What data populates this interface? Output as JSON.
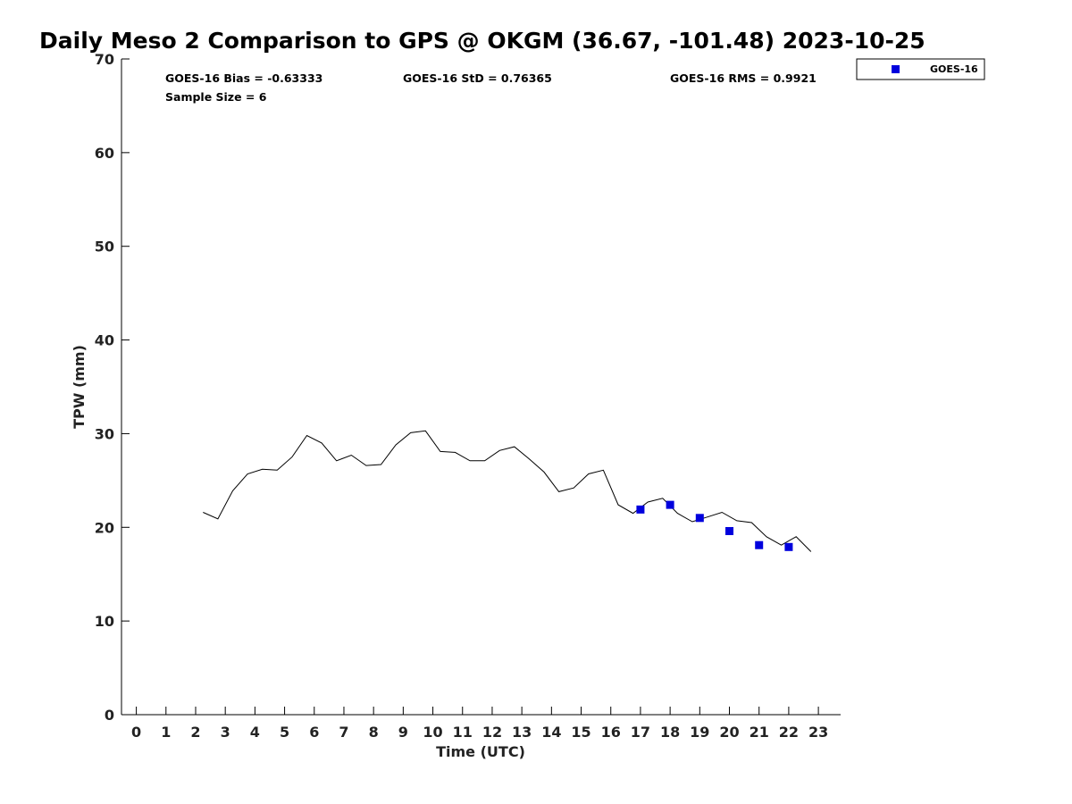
{
  "chart_data": {
    "type": "line",
    "title": "Daily Meso 2 Comparison to GPS @ OKGM (36.67, -101.48) 2023-10-25",
    "xlabel": "Time (UTC)",
    "ylabel": "TPW (mm)",
    "xlim": [
      -0.5,
      23.75
    ],
    "ylim": [
      0,
      70
    ],
    "x_ticks": [
      0,
      1,
      2,
      3,
      4,
      5,
      6,
      7,
      8,
      9,
      10,
      11,
      12,
      13,
      14,
      15,
      16,
      17,
      18,
      19,
      20,
      21,
      22,
      23
    ],
    "y_ticks": [
      0,
      10,
      20,
      30,
      40,
      50,
      60,
      70
    ],
    "grid": false,
    "legend_position": "top-right",
    "stats": {
      "bias": "GOES-16 Bias = -0.63333",
      "std": "GOES-16 StD = 0.76365",
      "rms": "GOES-16 RMS = 0.9921",
      "sample": "Sample Size = 6"
    },
    "gps_line": {
      "color": "#000000",
      "x": [
        2.25,
        2.75,
        3.25,
        3.75,
        4.25,
        4.75,
        5.25,
        5.75,
        6.25,
        6.75,
        7.25,
        7.75,
        8.25,
        8.75,
        9.25,
        9.75,
        10.25,
        10.75,
        11.25,
        11.75,
        12.25,
        12.75,
        13.25,
        13.75,
        14.25,
        14.75,
        15.25,
        15.75,
        16.25,
        16.75,
        17.25,
        17.75,
        18.25,
        18.75,
        19.25,
        19.75,
        20.25,
        20.75,
        21.25,
        21.75,
        22.25,
        22.75
      ],
      "y": [
        21.6,
        20.9,
        23.9,
        25.7,
        26.2,
        26.1,
        27.5,
        29.8,
        29.0,
        27.1,
        27.7,
        26.6,
        26.7,
        28.8,
        30.1,
        30.3,
        28.1,
        28.0,
        27.1,
        27.1,
        28.2,
        28.6,
        27.3,
        25.9,
        23.8,
        24.2,
        25.7,
        26.1,
        22.4,
        21.5,
        22.7,
        23.1,
        21.5,
        20.6,
        21.1,
        21.6,
        20.7,
        20.5,
        19.0,
        18.1,
        19.0,
        17.4
      ]
    },
    "series": [
      {
        "name": "GOES-16",
        "color": "#0000dd",
        "marker": "square",
        "x": [
          17,
          18,
          19,
          20,
          21,
          22
        ],
        "y": [
          21.9,
          22.4,
          21.0,
          19.6,
          18.1,
          17.9
        ]
      }
    ]
  }
}
